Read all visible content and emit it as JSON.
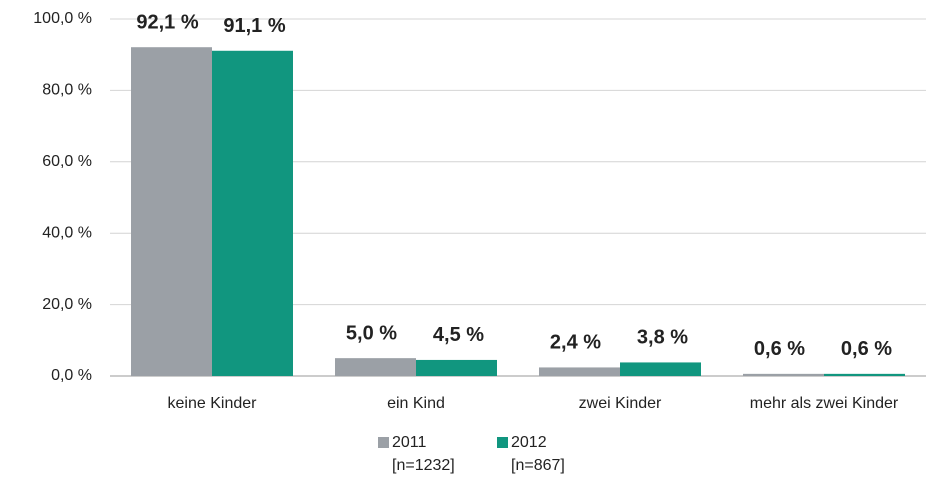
{
  "chart_data": {
    "type": "bar",
    "categories": [
      "keine Kinder",
      "ein Kind",
      "zwei Kinder",
      "mehr als zwei Kinder"
    ],
    "series": [
      {
        "name": "2011",
        "note": "[n=1232]",
        "color": "#9ba0a6",
        "values": [
          92.1,
          5.0,
          2.4,
          0.6
        ],
        "value_labels": [
          "92,1 %",
          "5,0 %",
          "2,4 %",
          "0,6 %"
        ]
      },
      {
        "name": "2012",
        "note": "[n=867]",
        "color": "#11967f",
        "values": [
          91.1,
          4.5,
          3.8,
          0.6
        ],
        "value_labels": [
          "91,1 %",
          "4,5 %",
          "3,8 %",
          "0,6 %"
        ]
      }
    ],
    "ylim": [
      0,
      100
    ],
    "yticks": [
      {
        "value": 0,
        "label": "0,0 %"
      },
      {
        "value": 20,
        "label": "20,0 %"
      },
      {
        "value": 40,
        "label": "40,0 %"
      },
      {
        "value": 60,
        "label": "60,0 %"
      },
      {
        "value": 80,
        "label": "80,0 %"
      },
      {
        "value": 100,
        "label": "100,0 %"
      }
    ],
    "grid": true,
    "legend": "bottom"
  }
}
